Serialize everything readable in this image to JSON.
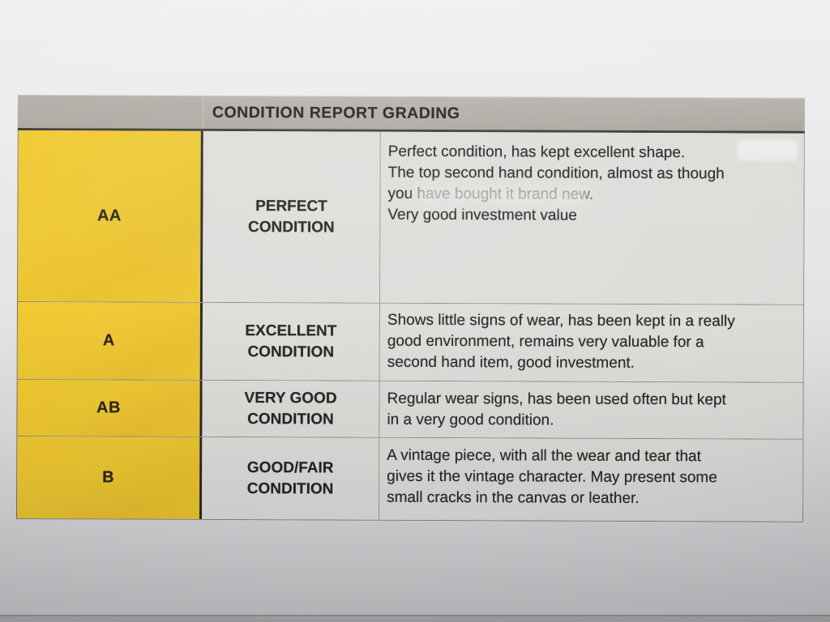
{
  "table": {
    "title": "CONDITION REPORT GRADING",
    "rows": [
      {
        "grade": "AA",
        "label_lines": [
          "PERFECT",
          "CONDITION"
        ],
        "paragraphs": [
          {
            "lines": [
              "Perfect condition, has kept excellent shape."
            ]
          },
          {
            "lines": [
              "The top second hand condition, almost as though",
              "you have bought it brand new."
            ]
          },
          {
            "lines": [
              "Very good investment value"
            ]
          }
        ]
      },
      {
        "grade": "A",
        "label_lines": [
          "EXCELLENT",
          "CONDITION"
        ],
        "paragraphs": [
          {
            "lines": [
              "Shows little signs of wear, has been kept in a really",
              "good environment, remains very valuable for a",
              "second hand item, good investment."
            ]
          }
        ]
      },
      {
        "grade": "AB",
        "label_lines": [
          "VERY GOOD",
          "CONDITION"
        ],
        "paragraphs": [
          {
            "lines": [
              "Regular wear signs, has been used often but kept",
              "in a very good condition."
            ]
          }
        ]
      },
      {
        "grade": "B",
        "label_lines": [
          "GOOD/FAIR",
          "CONDITION"
        ],
        "paragraphs": [
          {
            "lines": [
              "A vintage piece, with all the wear and tear that",
              "gives it the vintage character. May present some",
              "small cracks in the canvas or leather."
            ]
          }
        ]
      }
    ],
    "colors": {
      "grade_column_bg": "#ECC52B",
      "header_bg": "#AEAAA4",
      "cell_bg": "#DEDCD9",
      "text": "#232220",
      "paper_bg": "#E3E1E4"
    }
  }
}
